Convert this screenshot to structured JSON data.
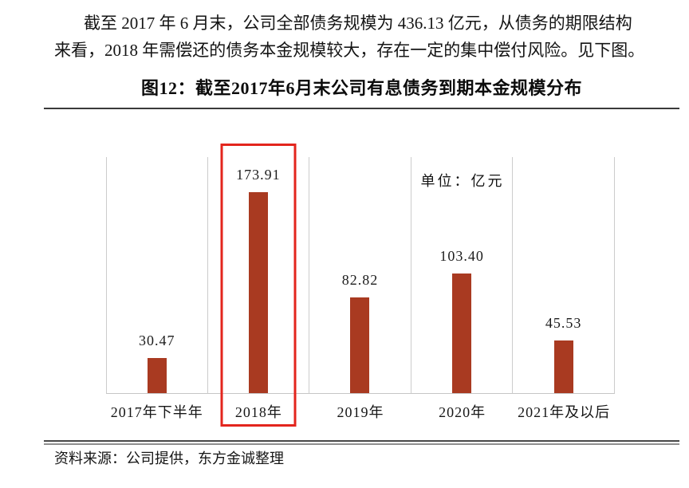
{
  "document": {
    "paragraph_lines": [
      "截至 2017 年 6 月末，公司全部债务规模为 436.13 亿元，从债务的期限结构",
      "来看，2018 年需偿还的债务本金规模较大，存在一定的集中偿付风险。见下图。"
    ]
  },
  "figure": {
    "title": "图12：截至2017年6月末公司有息债务到期本金规模分布",
    "unit_label": "单位：亿元",
    "source": "资料来源：公司提供，东方金诚整理"
  },
  "chart_data": {
    "type": "bar",
    "title": "截至2017年6月末公司有息债务到期本金规模分布",
    "categories": [
      "2017年下半年",
      "2018年",
      "2019年",
      "2020年",
      "2021年及以后"
    ],
    "values": [
      30.47,
      173.91,
      82.82,
      103.4,
      45.53
    ],
    "value_labels": [
      "30.47",
      "173.91",
      "82.82",
      "103.40",
      "45.53"
    ],
    "unit": "亿元",
    "ylabel": "",
    "xlabel": "",
    "ylim": [
      0,
      180
    ],
    "legend": "none",
    "grid": "vertical category separators and baseline only, no y-axis ticks",
    "highlight_index": 1,
    "bar_color": "#a93a21",
    "highlight_box_color": "#e3251d"
  }
}
